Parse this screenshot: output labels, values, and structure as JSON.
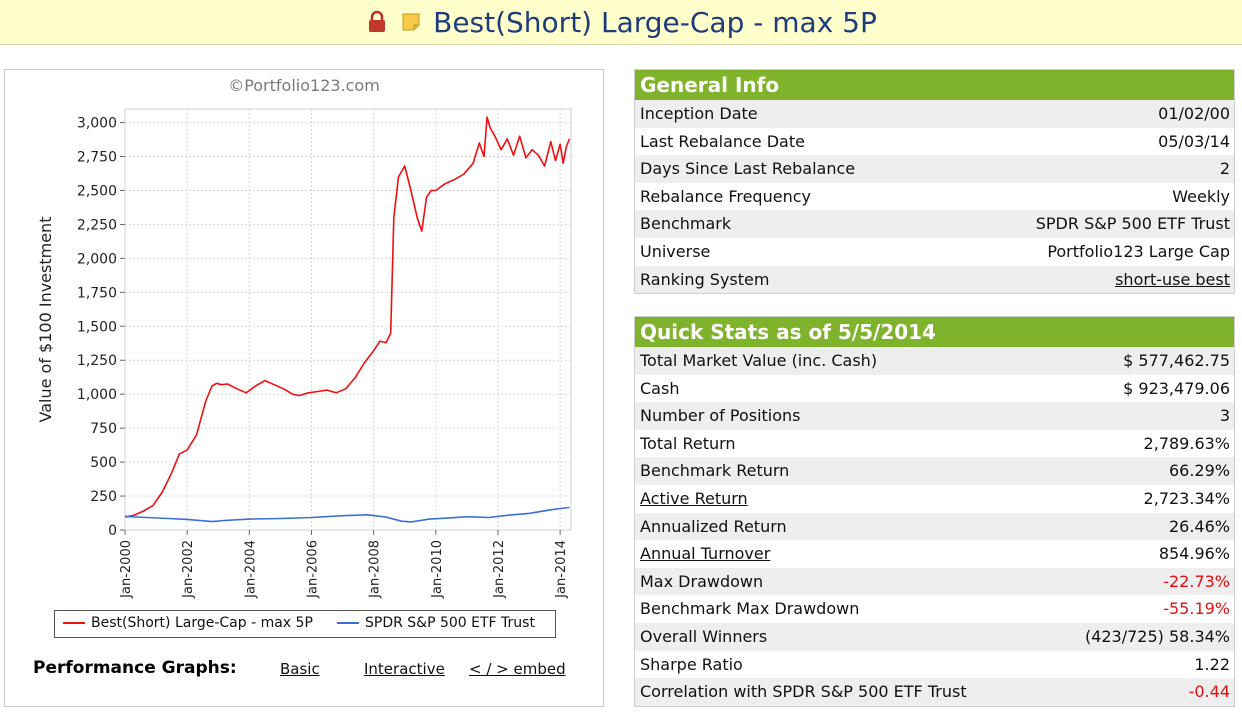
{
  "title": "Best(Short) Large-Cap - max 5P",
  "icons": {
    "lock": "lock-icon",
    "note": "note-icon"
  },
  "chart": {
    "copyright": "©Portfolio123.com",
    "legend": [
      {
        "name": "Best(Short) Large-Cap - max 5P",
        "color": "#ee1111"
      },
      {
        "name": "SPDR S&P 500 ETF Trust",
        "color": "#3d6fd6"
      }
    ]
  },
  "chart_data": {
    "type": "line",
    "title": "",
    "ylabel": "Value of $100 Investment",
    "xlabel": "",
    "ylim": [
      0,
      3100
    ],
    "yticks": [
      0,
      250,
      500,
      750,
      1000,
      1250,
      1500,
      1750,
      2000,
      2250,
      2500,
      2750,
      3000
    ],
    "yticklabels": [
      "0",
      "250",
      "500",
      "750",
      "1,000",
      "1,250",
      "1,500",
      "1,750",
      "2,000",
      "2,250",
      "2,500",
      "2,750",
      "3,000"
    ],
    "xlim": [
      2000.0,
      2014.35
    ],
    "xticks": [
      2000,
      2002,
      2004,
      2006,
      2008,
      2010,
      2012,
      2014
    ],
    "xticklabels": [
      "Jan-2000",
      "Jan-2002",
      "Jan-2004",
      "Jan-2006",
      "Jan-2008",
      "Jan-2010",
      "Jan-2012",
      "Jan-2014"
    ],
    "grid": true,
    "legend_position": "bottom",
    "series": [
      {
        "name": "Best(Short) Large-Cap - max 5P",
        "color": "#ee1111",
        "x": [
          2000.0,
          2000.3,
          2000.6,
          2000.9,
          2001.2,
          2001.5,
          2001.75,
          2002.0,
          2002.3,
          2002.6,
          2002.8,
          2002.95,
          2003.1,
          2003.3,
          2003.6,
          2003.9,
          2004.2,
          2004.5,
          2004.8,
          2005.1,
          2005.4,
          2005.6,
          2005.9,
          2006.2,
          2006.5,
          2006.8,
          2007.1,
          2007.4,
          2007.7,
          2008.0,
          2008.2,
          2008.4,
          2008.55,
          2008.65,
          2008.8,
          2009.0,
          2009.2,
          2009.4,
          2009.55,
          2009.7,
          2009.85,
          2010.0,
          2010.3,
          2010.6,
          2010.9,
          2011.2,
          2011.4,
          2011.55,
          2011.65,
          2011.75,
          2011.9,
          2012.1,
          2012.3,
          2012.5,
          2012.7,
          2012.9,
          2013.1,
          2013.3,
          2013.5,
          2013.7,
          2013.85,
          2014.0,
          2014.1,
          2014.2,
          2014.3
        ],
        "values": [
          95,
          110,
          140,
          180,
          280,
          420,
          560,
          590,
          700,
          950,
          1060,
          1080,
          1070,
          1075,
          1040,
          1010,
          1060,
          1100,
          1070,
          1040,
          1000,
          990,
          1010,
          1020,
          1030,
          1010,
          1040,
          1120,
          1230,
          1320,
          1390,
          1380,
          1450,
          2300,
          2600,
          2680,
          2500,
          2300,
          2200,
          2450,
          2500,
          2500,
          2550,
          2580,
          2620,
          2700,
          2850,
          2750,
          3040,
          2960,
          2900,
          2800,
          2880,
          2760,
          2900,
          2740,
          2800,
          2760,
          2680,
          2860,
          2720,
          2840,
          2700,
          2820,
          2880
        ]
      },
      {
        "name": "SPDR S&P 500 ETF Trust",
        "color": "#3d6fd6",
        "x": [
          2000.0,
          2000.7,
          2001.4,
          2002.0,
          2002.8,
          2003.2,
          2004.0,
          2005.0,
          2006.0,
          2007.0,
          2007.8,
          2008.4,
          2008.9,
          2009.2,
          2009.8,
          2010.5,
          2011.0,
          2011.7,
          2012.3,
          2013.0,
          2013.6,
          2014.0,
          2014.3
        ],
        "values": [
          100,
          92,
          85,
          78,
          62,
          70,
          80,
          85,
          92,
          105,
          112,
          95,
          65,
          60,
          80,
          90,
          98,
          92,
          108,
          122,
          145,
          158,
          166
        ]
      }
    ]
  },
  "perf": {
    "label": "Performance Graphs:",
    "links": [
      "Basic",
      "Interactive",
      "< / > embed"
    ]
  },
  "general_info": {
    "header": "General Info",
    "rows": [
      {
        "label": "Inception Date",
        "value": "01/02/00"
      },
      {
        "label": "Last Rebalance Date",
        "value": "05/03/14"
      },
      {
        "label": "Days Since Last Rebalance",
        "value": "2"
      },
      {
        "label": "Rebalance Frequency",
        "value": "Weekly"
      },
      {
        "label": "Benchmark",
        "value": "SPDR S&P 500 ETF Trust"
      },
      {
        "label": "Universe",
        "value": "Portfolio123 Large Cap"
      },
      {
        "label": "Ranking System",
        "value": "short-use best"
      }
    ]
  },
  "quick_stats": {
    "header": "Quick Stats as of 5/5/2014",
    "rows": [
      {
        "label": "Total Market Value (inc. Cash)",
        "value": "$ 577,462.75"
      },
      {
        "label": "Cash",
        "value": "$ 923,479.06"
      },
      {
        "label": "Number of Positions",
        "value": "3"
      },
      {
        "label": "Total Return",
        "value": "2,789.63%"
      },
      {
        "label": "Benchmark Return",
        "value": "66.29%"
      },
      {
        "label": "Active Return",
        "value": "2,723.34%"
      },
      {
        "label": "Annualized Return",
        "value": "26.46%"
      },
      {
        "label": "Annual Turnover",
        "value": "854.96%"
      },
      {
        "label": "Max Drawdown",
        "value": "-22.73%"
      },
      {
        "label": "Benchmark Max Drawdown",
        "value": "-55.19%"
      },
      {
        "label": "Overall Winners",
        "value": "(423/725) 58.34%"
      },
      {
        "label": "Sharpe Ratio",
        "value": "1.22"
      },
      {
        "label": "Correlation with SPDR S&P 500 ETF Trust",
        "value": "-0.44"
      }
    ]
  },
  "colors": {
    "header_green": "#7fb32c",
    "title_bg": "#ffffcc",
    "title_text": "#1f3c7a",
    "negative": "#e01010"
  }
}
